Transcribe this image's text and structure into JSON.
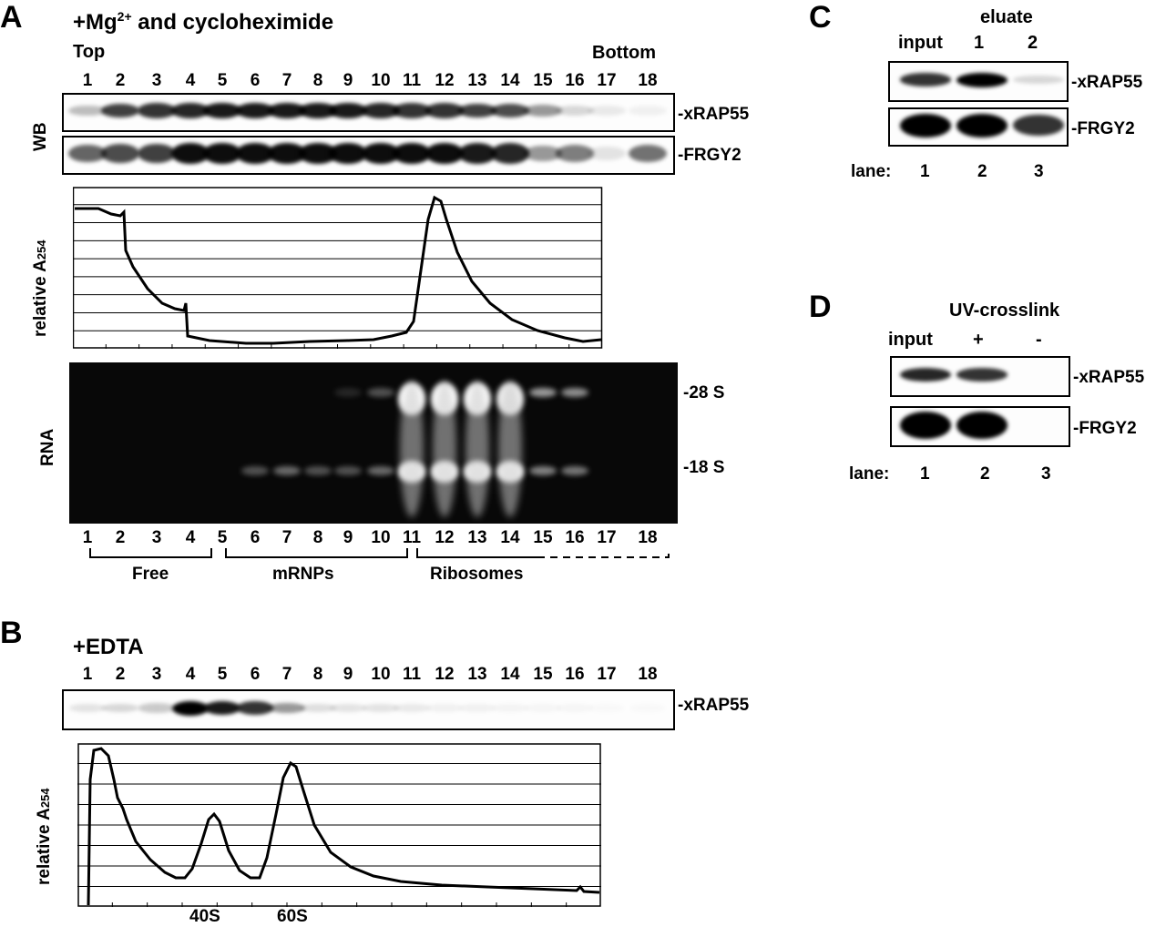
{
  "panelA": {
    "letter": "A",
    "condition": "+Mg",
    "condition_sup": "2+",
    "condition_rest": " and cycloheximide",
    "top_label": "Top",
    "bottom_label": "Bottom",
    "lanes": [
      "1",
      "2",
      "3",
      "4",
      "5",
      "6",
      "7",
      "8",
      "9",
      "10",
      "11",
      "12",
      "13",
      "14",
      "15",
      "16",
      "17",
      "18"
    ],
    "wb_label": "WB",
    "blot1_label": "-xRAP55",
    "blot2_label": "-FRGY2",
    "ylabel": "relative A",
    "ylabel_sub": "254",
    "rna_label": "RNA",
    "marker_28s": "-28 S",
    "marker_18s": "-18 S",
    "groups": [
      "Free",
      "mRNPs",
      "Ribosomes"
    ],
    "blot1_intensity": [
      0.25,
      0.75,
      0.8,
      0.85,
      0.9,
      0.9,
      0.9,
      0.9,
      0.9,
      0.85,
      0.8,
      0.8,
      0.75,
      0.7,
      0.4,
      0.15,
      0.08,
      0.05
    ],
    "blot2_intensity": [
      0.6,
      0.7,
      0.75,
      0.95,
      0.95,
      0.95,
      0.95,
      0.95,
      0.95,
      0.95,
      0.95,
      0.95,
      0.9,
      0.85,
      0.4,
      0.5,
      0.1,
      0.55
    ],
    "rna_28s": [
      0,
      0,
      0,
      0,
      0,
      0,
      0,
      0,
      0.12,
      0.3,
      1,
      1,
      1,
      0.95,
      0.6,
      0.55,
      0,
      0
    ],
    "rna_18s": [
      0,
      0,
      0,
      0,
      0,
      0.3,
      0.4,
      0.3,
      0.3,
      0.4,
      1,
      1,
      1,
      1,
      0.5,
      0.45,
      0,
      0
    ]
  },
  "panelB": {
    "letter": "B",
    "condition": "+EDTA",
    "lanes": [
      "1",
      "2",
      "3",
      "4",
      "5",
      "6",
      "7",
      "8",
      "9",
      "10",
      "11",
      "12",
      "13",
      "14",
      "15",
      "16",
      "17",
      "18"
    ],
    "blot_label": "-xRAP55",
    "ylabel": "relative A",
    "ylabel_sub": "254",
    "peak_labels": [
      "40S",
      "60S"
    ],
    "blot_intensity": [
      0.1,
      0.15,
      0.2,
      1,
      0.9,
      0.8,
      0.4,
      0.12,
      0.1,
      0.1,
      0.08,
      0.05,
      0.05,
      0.04,
      0.03,
      0.03,
      0.02,
      0.02
    ]
  },
  "panelC": {
    "letter": "C",
    "eluate": "eluate",
    "cols": [
      "input",
      "1",
      "2"
    ],
    "blot1_label": "-xRAP55",
    "blot2_label": "-FRGY2",
    "lane_prefix": "lane:",
    "lanes": [
      "1",
      "2",
      "3"
    ],
    "blot1_intensity": [
      0.8,
      1,
      0.15
    ],
    "blot2_intensity": [
      1,
      1,
      0.8
    ]
  },
  "panelD": {
    "letter": "D",
    "title": "UV-crosslink",
    "cols": [
      "input",
      "+",
      "-"
    ],
    "blot1_label": "-xRAP55",
    "blot2_label": "-FRGY2",
    "lane_prefix": "lane:",
    "lanes": [
      "1",
      "2",
      "3"
    ],
    "blot1_intensity": [
      0.85,
      0.8,
      0
    ],
    "blot2_intensity": [
      1,
      1,
      0
    ]
  }
}
